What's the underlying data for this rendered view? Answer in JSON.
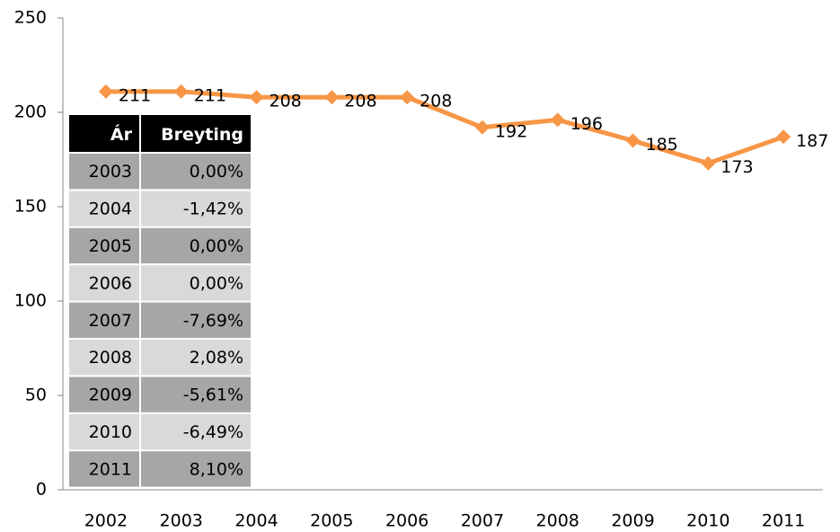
{
  "chart_data": {
    "type": "line",
    "categories": [
      "2002",
      "2003",
      "2004",
      "2005",
      "2006",
      "2007",
      "2008",
      "2009",
      "2010",
      "2011"
    ],
    "values": [
      211,
      211,
      208,
      208,
      208,
      192,
      196,
      185,
      173,
      187
    ],
    "color": "#f79646",
    "ylim": [
      0,
      250
    ],
    "yticks": [
      0,
      50,
      100,
      150,
      200,
      250
    ],
    "grid": false,
    "table": {
      "header": [
        "Ár",
        "Breyting"
      ],
      "rows": [
        [
          "2003",
          "0,00%"
        ],
        [
          "2004",
          "-1,42%"
        ],
        [
          "2005",
          "0,00%"
        ],
        [
          "2006",
          "0,00%"
        ],
        [
          "2007",
          "-7,69%"
        ],
        [
          "2008",
          "2,08%"
        ],
        [
          "2009",
          "-5,61%"
        ],
        [
          "2010",
          "-6,49%"
        ],
        [
          "2011",
          "8,10%"
        ]
      ]
    }
  }
}
